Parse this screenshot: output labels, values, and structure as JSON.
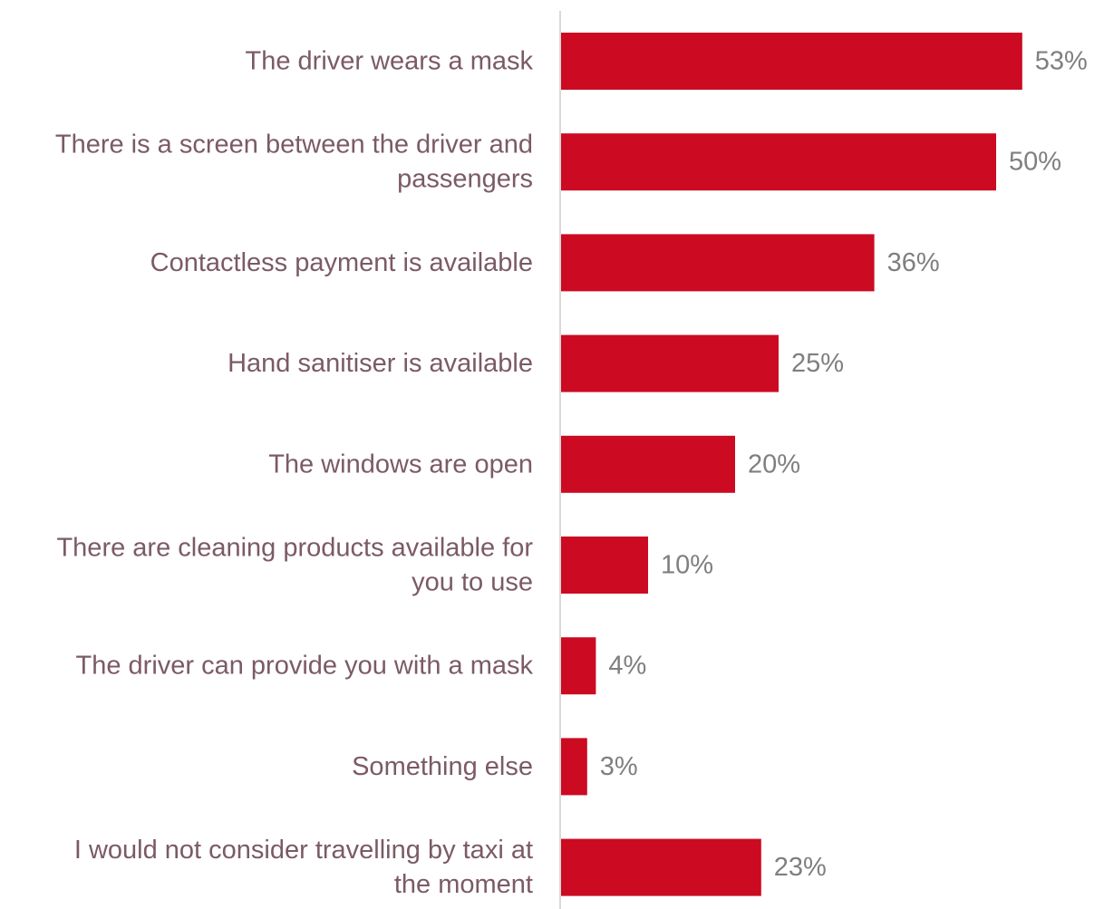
{
  "chart_data": {
    "type": "bar",
    "orientation": "horizontal",
    "categories": [
      [
        "The driver wears a mask"
      ],
      [
        "There is a screen between the driver and",
        "passengers"
      ],
      [
        "Contactless payment is available"
      ],
      [
        "Hand sanitiser is available"
      ],
      [
        "The windows are open"
      ],
      [
        "There are cleaning products available for",
        "you to use"
      ],
      [
        "The driver can provide you with a mask"
      ],
      [
        "Something else"
      ],
      [
        "I would not consider travelling by taxi at",
        "the moment"
      ]
    ],
    "values": [
      53,
      50,
      36,
      25,
      20,
      10,
      4,
      3,
      23
    ],
    "value_labels": [
      "53%",
      "50%",
      "36%",
      "25%",
      "20%",
      "10%",
      "4%",
      "3%",
      "23%"
    ],
    "unit": "%",
    "xlim": [
      0,
      60
    ],
    "grid": false,
    "legend": "none",
    "colors": {
      "bar": "#cc0a22",
      "category_text": "#7b5a67",
      "value_text": "#7f7f7f",
      "axis": "#d9d9d9"
    }
  }
}
